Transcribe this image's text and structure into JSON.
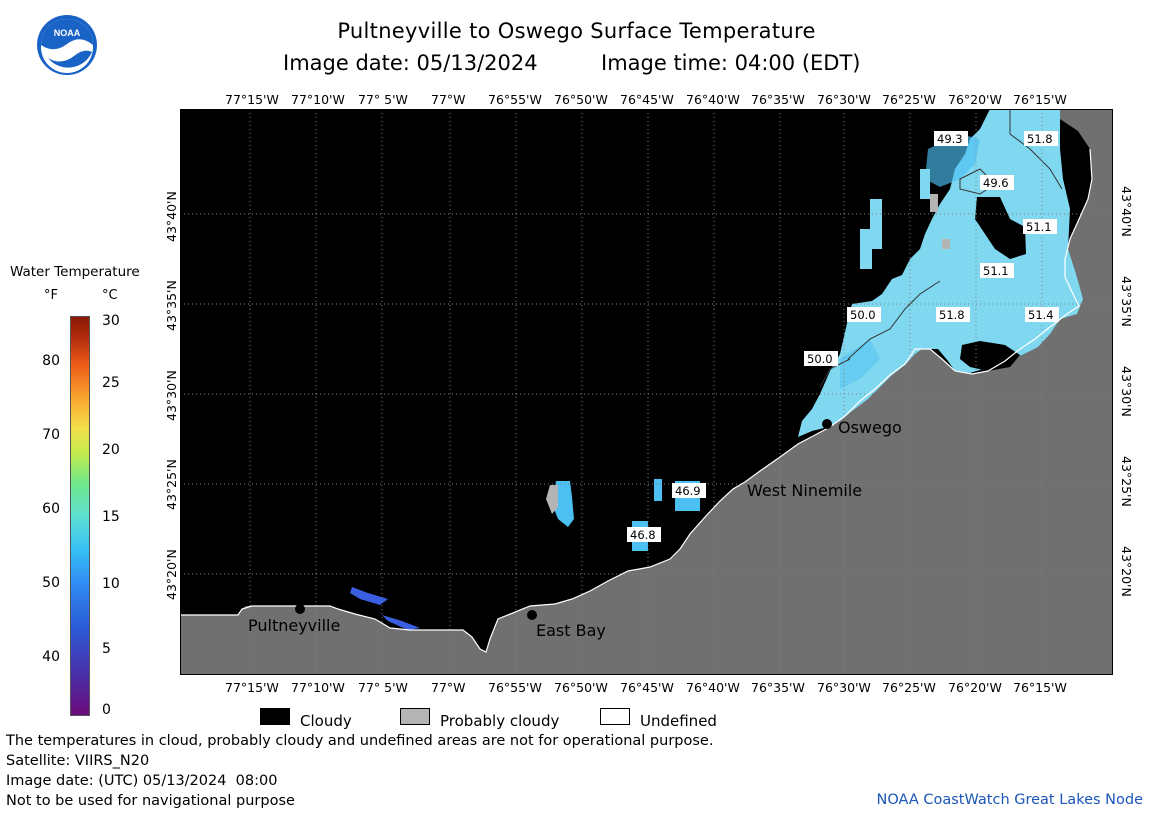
{
  "header": {
    "title": "Pultneyville to Oswego Surface Temperature",
    "image_date": "Image date: 05/13/2024",
    "image_time": "Image time: 04:00 (EDT)"
  },
  "logo": {
    "text": "NOAA",
    "icon": "noaa-logo-icon"
  },
  "axes": {
    "longitudes": [
      "77°15'W",
      "77°10'W",
      "77° 5'W",
      "77°W",
      "76°55'W",
      "76°50'W",
      "76°45'W",
      "76°40'W",
      "76°35'W",
      "76°30'W",
      "76°25'W",
      "76°20'W",
      "76°15'W"
    ],
    "latitudes": [
      "43°40'N",
      "43°35'N",
      "43°30'N",
      "43°25'N",
      "43°20'N"
    ]
  },
  "places": {
    "pultneyville": "Pultneyville",
    "east_bay": "East Bay",
    "west_ninemile": "West Ninemile",
    "oswego": "Oswego"
  },
  "temperature_labels": [
    "49.3",
    "51.8",
    "49.6",
    "51.1",
    "51.1",
    "50.0",
    "51.8",
    "51.4",
    "50.0",
    "46.9",
    "46.8"
  ],
  "legend": {
    "title": "Water Temperature",
    "unit_f": "°F",
    "unit_c": "°C",
    "f_ticks": [
      "80",
      "70",
      "60",
      "50",
      "40"
    ],
    "c_ticks": [
      "30",
      "25",
      "20",
      "15",
      "10",
      "5",
      "0"
    ]
  },
  "cloud_legend": {
    "cloudy": "Cloudy",
    "probably_cloudy": "Probably cloudy",
    "undefined": "Undefined"
  },
  "footer": {
    "note": "The temperatures in cloud, probably cloudy and undefined areas are not for operational purpose.",
    "satellite": "Satellite: VIIRS_N20",
    "utc_date": "Image date: (UTC) 05/13/2024  08:00",
    "navigation": "Not to be used for navigational purpose",
    "credit": "NOAA CoastWatch Great Lakes Node"
  },
  "colors": {
    "cloudy": "#000000",
    "probably_cloudy": "#b4b4b4",
    "land": "#707070",
    "water_warm": "#7fd8f0",
    "water_mid": "#4dc0f2"
  }
}
